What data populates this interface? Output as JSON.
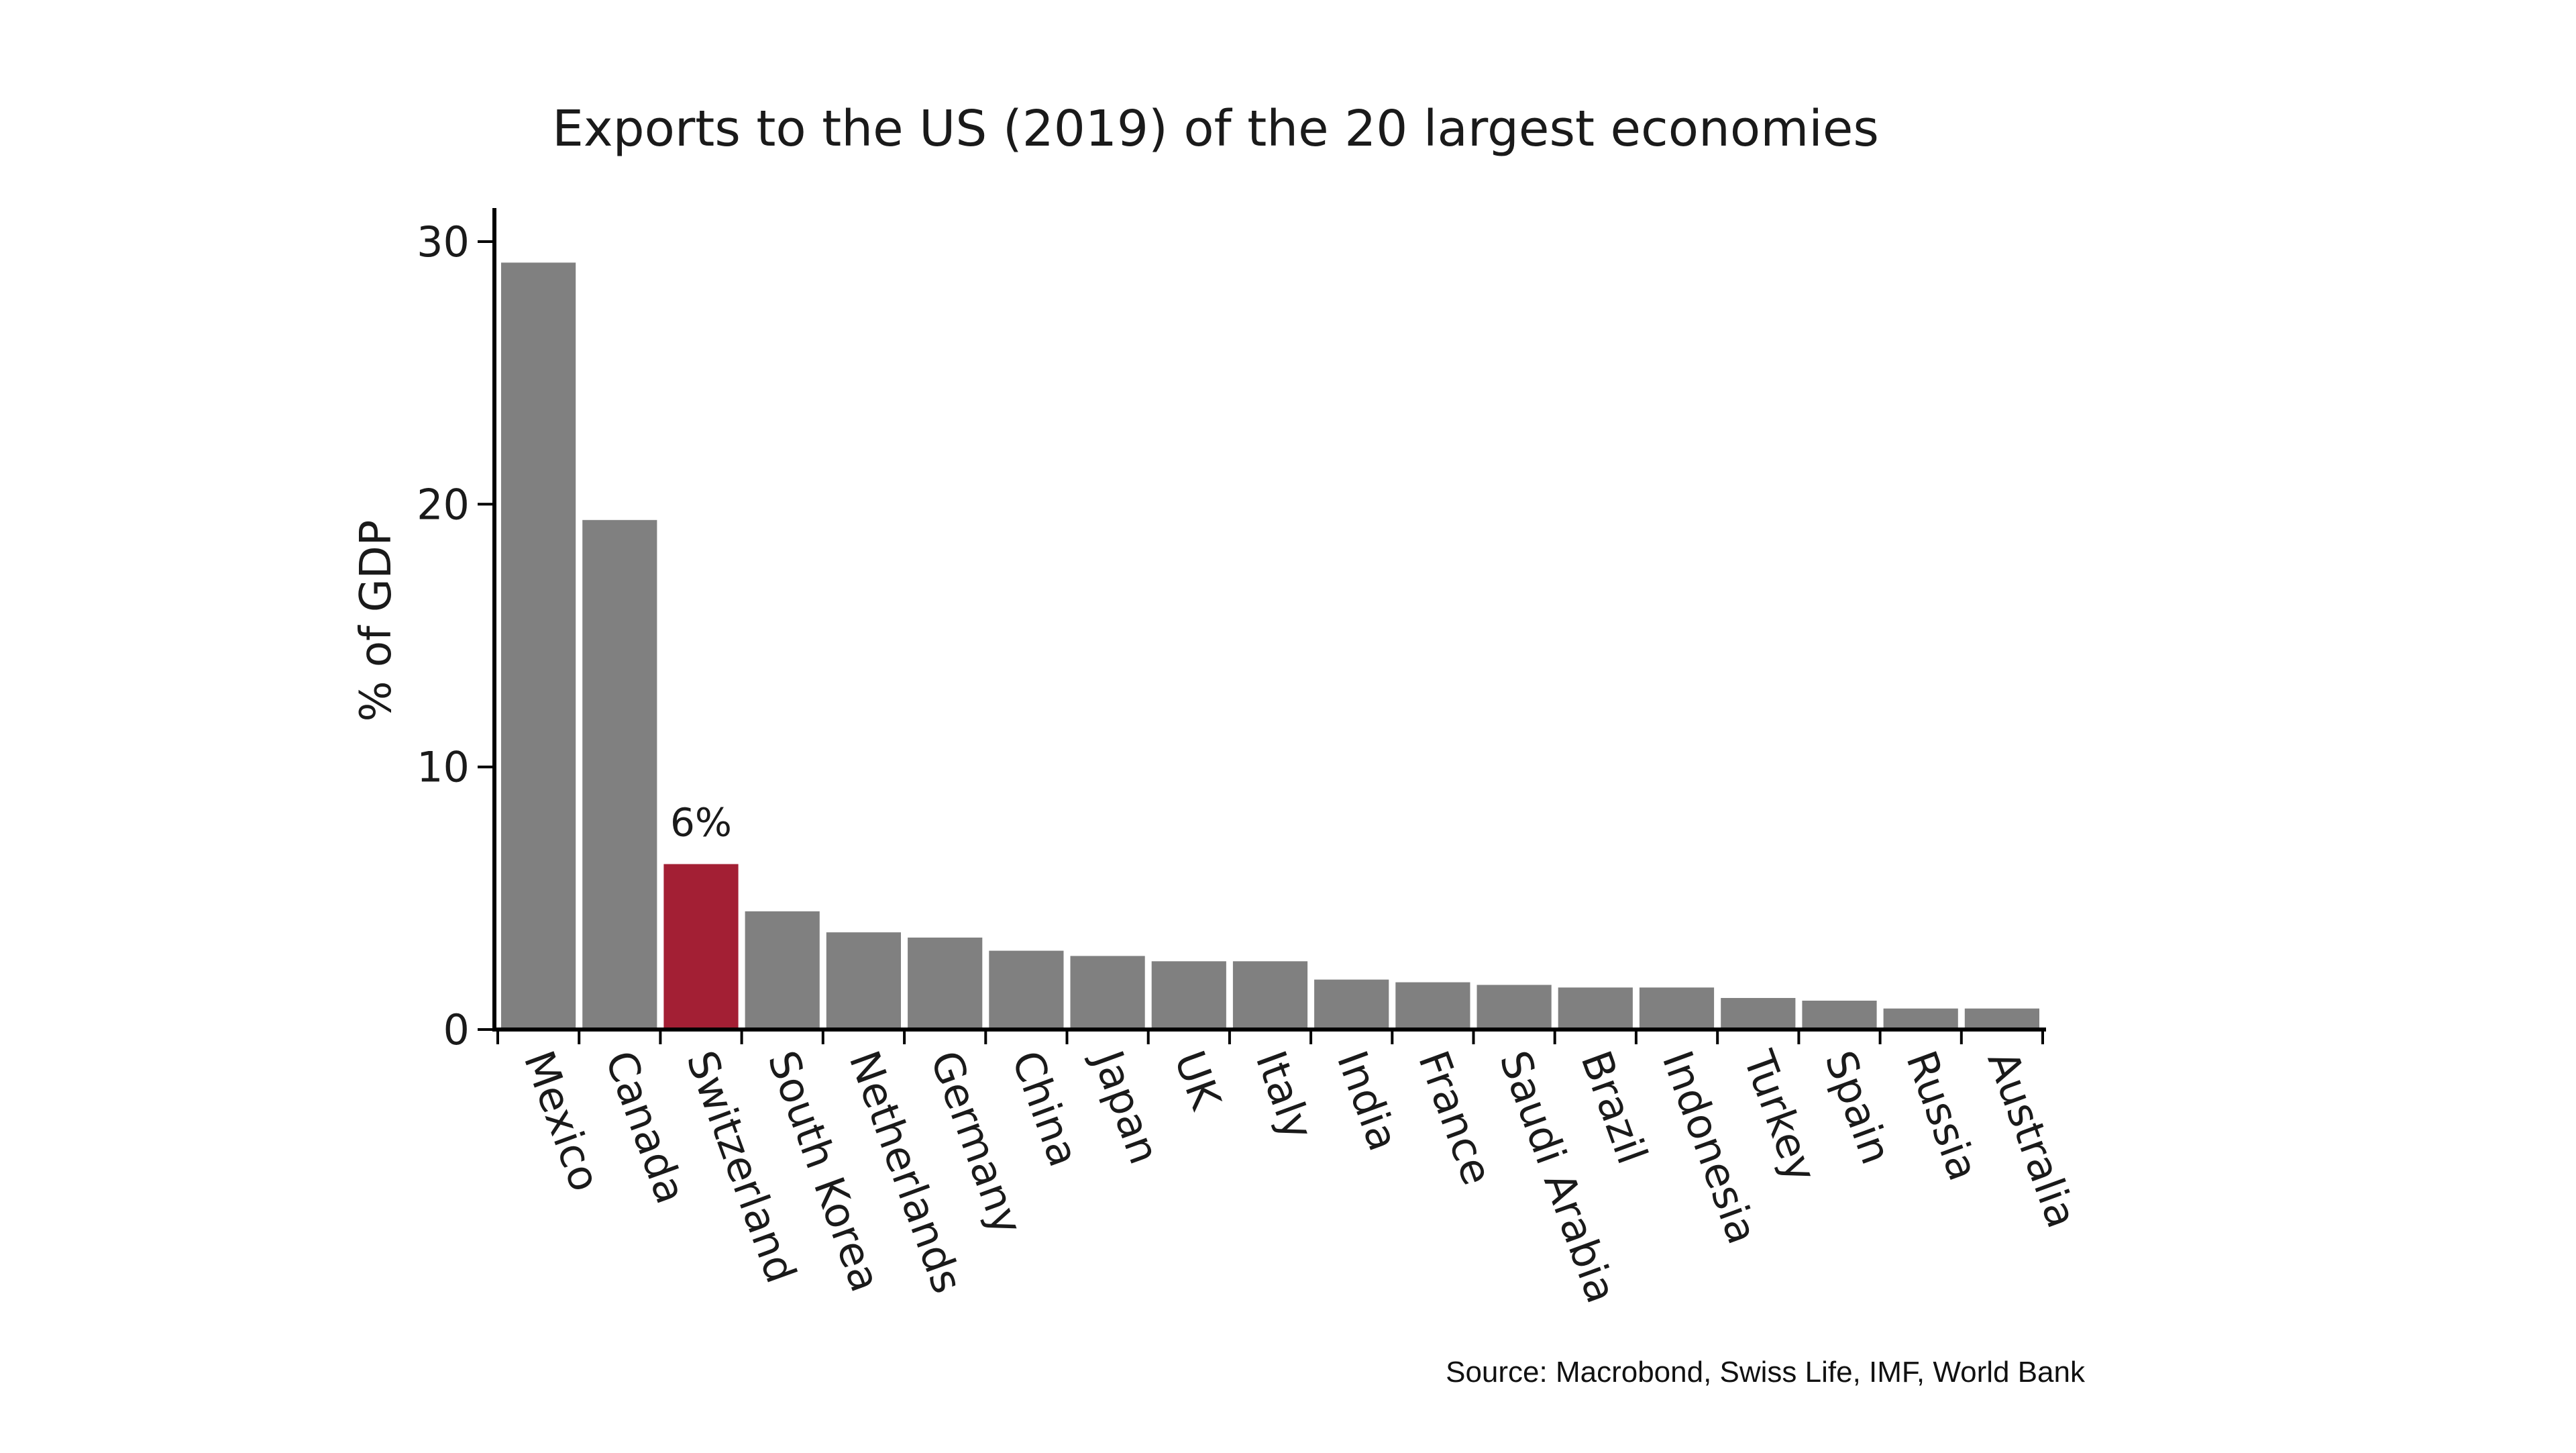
{
  "chart_data": {
    "type": "bar",
    "title": "Exports to the US (2019) of the 20 largest economies",
    "xlabel": "",
    "ylabel": "% of GDP",
    "ylim": [
      0,
      30
    ],
    "yticks": [
      0,
      10,
      20,
      30
    ],
    "categories": [
      "Mexico",
      "Canada",
      "Switzerland",
      "South Korea",
      "Netherlands",
      "Germany",
      "China",
      "Japan",
      "UK",
      "Italy",
      "India",
      "France",
      "Saudi Arabia",
      "Brazil",
      "Indonesia",
      "Turkey",
      "Spain",
      "Russia",
      "Australia"
    ],
    "values": [
      29.2,
      19.4,
      6.3,
      4.5,
      3.7,
      3.5,
      3.0,
      2.8,
      2.6,
      2.6,
      1.9,
      1.8,
      1.7,
      1.6,
      1.6,
      1.2,
      1.1,
      0.8,
      0.8
    ],
    "highlight_index": 2,
    "annotation": "6%",
    "source": "Source: Macrobond, Swiss Life, IMF, World Bank",
    "grid": false,
    "colors": {
      "bar": "#808080",
      "highlight": "#a31f34",
      "axis": "#000000"
    }
  }
}
